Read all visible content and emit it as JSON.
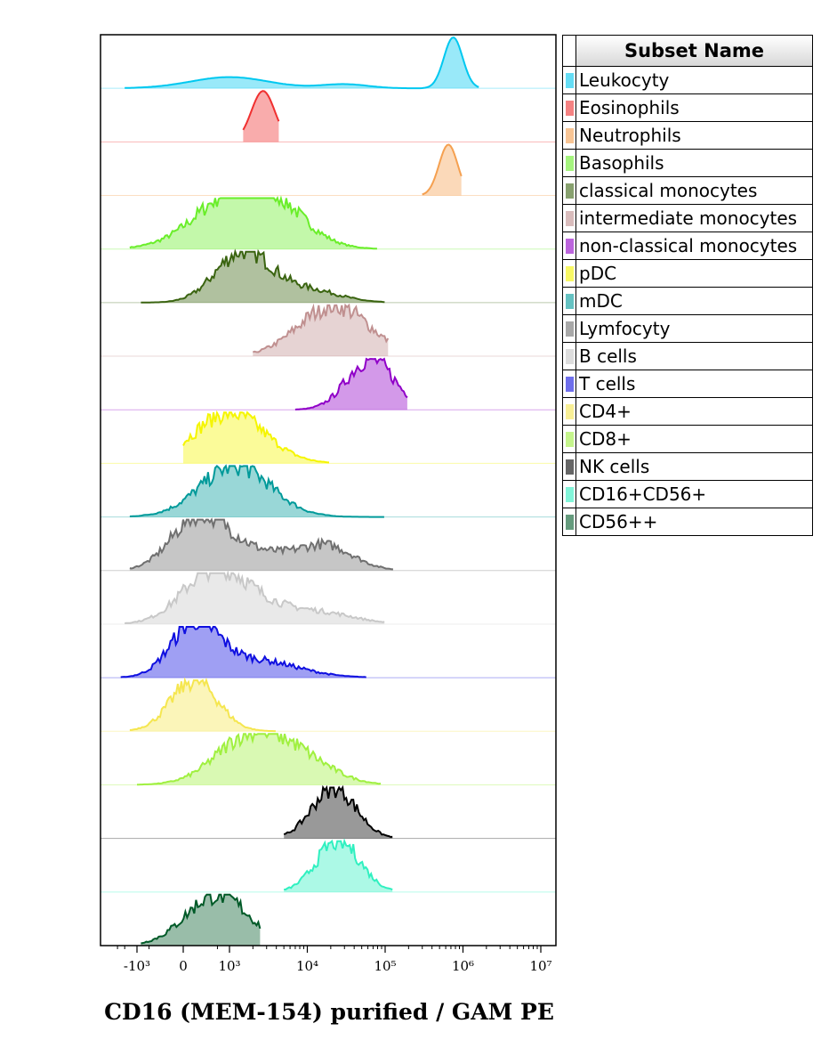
{
  "legend": {
    "title": "Subset Name",
    "items": [
      {
        "name": "Leukocyty",
        "color": "#00c8f0"
      },
      {
        "name": "Eosinophils",
        "color": "#f03030"
      },
      {
        "name": "Neutrophils",
        "color": "#f5a050"
      },
      {
        "name": "Basophils",
        "color": "#6aee2a"
      },
      {
        "name": "classical monocytes",
        "color": "#3a6410"
      },
      {
        "name": "intermediate monocytes",
        "color": "#c09090"
      },
      {
        "name": "non-classical monocytes",
        "color": "#9000c8"
      },
      {
        "name": "pDC",
        "color": "#f5f500"
      },
      {
        "name": "mDC",
        "color": "#009a9a"
      },
      {
        "name": "Lymfocyty",
        "color": "#707070"
      },
      {
        "name": "B cells",
        "color": "#c8c8c8"
      },
      {
        "name": "T cells",
        "color": "#1010e0"
      },
      {
        "name": "CD4+",
        "color": "#f5e650"
      },
      {
        "name": "CD8+",
        "color": "#a0f040"
      },
      {
        "name": "NK cells",
        "color": "#000000"
      },
      {
        "name": "CD16+CD56+",
        "color": "#30f0c0"
      },
      {
        "name": "CD56++",
        "color": "#005a28"
      }
    ]
  },
  "axis": {
    "title": "CD16 (MEM-154) purified / GAM PE",
    "tick_labels": [
      "-10³",
      "0",
      "10³",
      "10⁴",
      "10⁵",
      "10⁶",
      "10⁷"
    ]
  },
  "chart_data": {
    "type": "area",
    "subtype": "overlaid histograms (ridgeline)",
    "xlabel": "CD16 (MEM-154) purified / GAM PE",
    "ylabel": "",
    "x_scale": "biexponential",
    "x_ticks": [
      -1000,
      0,
      1000,
      10000,
      100000,
      1000000,
      10000000
    ],
    "xlim": [
      -3000,
      10000000
    ],
    "series": [
      {
        "name": "Leukocyty",
        "peaks": [
          {
            "x": 1000,
            "h": 0.22,
            "w": 0.5
          },
          {
            "x": 30000,
            "h": 0.08,
            "w": 0.3
          },
          {
            "x": 750000,
            "h": 1.0,
            "w": 0.12
          }
        ],
        "range": [
          -2000,
          1600000
        ]
      },
      {
        "name": "Eosinophils",
        "peaks": [
          {
            "x": 2700,
            "h": 1.0,
            "w": 0.15
          }
        ],
        "range": [
          1500,
          4500
        ]
      },
      {
        "name": "Neutrophils",
        "peaks": [
          {
            "x": 650000,
            "h": 1.0,
            "w": 0.12
          }
        ],
        "range": [
          300000,
          1000000
        ]
      },
      {
        "name": "Basophils",
        "peaks": [
          {
            "x": 1000,
            "h": 0.85,
            "w": 0.5
          },
          {
            "x": 3500,
            "h": 0.7,
            "w": 0.45
          }
        ],
        "range": [
          -1500,
          80000
        ]
      },
      {
        "name": "classical monocytes",
        "peaks": [
          {
            "x": 1500,
            "h": 1.0,
            "w": 0.35
          },
          {
            "x": 10000,
            "h": 0.25,
            "w": 0.4
          }
        ],
        "range": [
          -800,
          100000
        ]
      },
      {
        "name": "intermediate monocytes",
        "peaks": [
          {
            "x": 22000,
            "h": 1.0,
            "w": 0.45
          }
        ],
        "range": [
          2000,
          110000
        ]
      },
      {
        "name": "non-classical monocytes",
        "peaks": [
          {
            "x": 65000,
            "h": 1.0,
            "w": 0.3
          }
        ],
        "range": [
          7000,
          200000
        ]
      },
      {
        "name": "pDC",
        "peaks": [
          {
            "x": 1000,
            "h": 1.0,
            "w": 0.45
          }
        ],
        "range": [
          0,
          20000
        ]
      },
      {
        "name": "mDC",
        "peaks": [
          {
            "x": 1200,
            "h": 1.0,
            "w": 0.45
          }
        ],
        "range": [
          -1500,
          100000
        ]
      },
      {
        "name": "Lymfocyty",
        "peaks": [
          {
            "x": 150,
            "h": 1.0,
            "w": 0.35
          },
          {
            "x": 2000,
            "h": 0.35,
            "w": 0.5
          },
          {
            "x": 18000,
            "h": 0.45,
            "w": 0.35
          }
        ],
        "range": [
          -1500,
          130000
        ]
      },
      {
        "name": "B cells",
        "peaks": [
          {
            "x": 400,
            "h": 1.0,
            "w": 0.4
          },
          {
            "x": 3000,
            "h": 0.3,
            "w": 0.5
          },
          {
            "x": 20000,
            "h": 0.15,
            "w": 0.4
          }
        ],
        "range": [
          -2000,
          100000
        ]
      },
      {
        "name": "T cells",
        "peaks": [
          {
            "x": 100,
            "h": 1.0,
            "w": 0.3
          },
          {
            "x": 2000,
            "h": 0.35,
            "w": 0.55
          }
        ],
        "range": [
          -2500,
          60000
        ]
      },
      {
        "name": "CD4+",
        "peaks": [
          {
            "x": 100,
            "h": 1.0,
            "w": 0.3
          }
        ],
        "range": [
          -1500,
          4000
        ]
      },
      {
        "name": "CD8+",
        "peaks": [
          {
            "x": 2000,
            "h": 1.0,
            "w": 0.45
          },
          {
            "x": 10000,
            "h": 0.35,
            "w": 0.4
          }
        ],
        "range": [
          -1000,
          90000
        ]
      },
      {
        "name": "NK cells",
        "peaks": [
          {
            "x": 22000,
            "h": 1.0,
            "w": 0.28
          }
        ],
        "range": [
          5000,
          130000
        ]
      },
      {
        "name": "CD16+CD56+",
        "peaks": [
          {
            "x": 25000,
            "h": 1.0,
            "w": 0.28
          }
        ],
        "range": [
          5000,
          130000
        ]
      },
      {
        "name": "CD56++",
        "peaks": [
          {
            "x": 500,
            "h": 1.0,
            "w": 0.4
          }
        ],
        "range": [
          -800,
          2500
        ]
      }
    ]
  }
}
